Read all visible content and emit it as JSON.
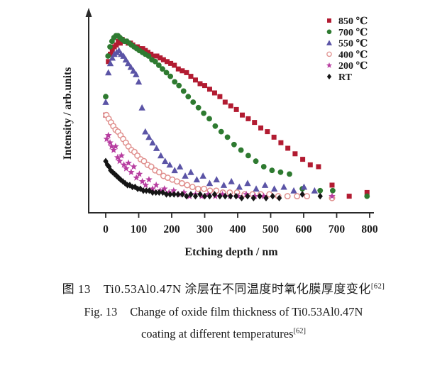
{
  "figure": {
    "caption_cn": {
      "label": "图 13",
      "text": "Ti0.53Al0.47N 涂层在不同温度时氧化膜厚度变化",
      "ref": "[62]"
    },
    "caption_en": {
      "label": "Fig. 13",
      "line1": "Change of oxide film thickness of Ti0.53Al0.47N",
      "line2": "coating at different temperatures",
      "ref": "[62]"
    }
  },
  "chart_data": {
    "type": "scatter",
    "title": "",
    "xlabel": "Etching depth / nm",
    "ylabel": "Intensity / arb.units",
    "x_ticks": [
      0,
      100,
      200,
      300,
      400,
      500,
      600,
      700,
      800
    ],
    "xlim": [
      -52,
      812
    ],
    "ylim": [
      0,
      110
    ],
    "grid": false,
    "legend_position": "top-right",
    "axis_color": "#2a2a2a",
    "series": [
      {
        "name": "850 ℃",
        "marker": "square",
        "color": "#b21b31",
        "points": [
          [
            0,
            53
          ],
          [
            8,
            82
          ],
          [
            14,
            86
          ],
          [
            20,
            88
          ],
          [
            26,
            90
          ],
          [
            32,
            91
          ],
          [
            38,
            93
          ],
          [
            44,
            92
          ],
          [
            50,
            94
          ],
          [
            56,
            93
          ],
          [
            62,
            93
          ],
          [
            68,
            92
          ],
          [
            75,
            92
          ],
          [
            82,
            91
          ],
          [
            89,
            90
          ],
          [
            96,
            90
          ],
          [
            104,
            89
          ],
          [
            112,
            89
          ],
          [
            120,
            88
          ],
          [
            128,
            87
          ],
          [
            137,
            86
          ],
          [
            146,
            85
          ],
          [
            155,
            85
          ],
          [
            165,
            84
          ],
          [
            175,
            83
          ],
          [
            186,
            82
          ],
          [
            197,
            81
          ],
          [
            208,
            80
          ],
          [
            220,
            78
          ],
          [
            232,
            77
          ],
          [
            245,
            76
          ],
          [
            258,
            74
          ],
          [
            272,
            72
          ],
          [
            286,
            70
          ],
          [
            300,
            69
          ],
          [
            315,
            67
          ],
          [
            330,
            65
          ],
          [
            346,
            63
          ],
          [
            362,
            60
          ],
          [
            379,
            58
          ],
          [
            396,
            56
          ],
          [
            414,
            53
          ],
          [
            432,
            51
          ],
          [
            451,
            49
          ],
          [
            470,
            46
          ],
          [
            490,
            44
          ],
          [
            510,
            41
          ],
          [
            531,
            38
          ],
          [
            552,
            35
          ],
          [
            574,
            32
          ],
          [
            597,
            29
          ],
          [
            620,
            26
          ],
          [
            645,
            25
          ],
          [
            686,
            15
          ],
          [
            738,
            9
          ],
          [
            792,
            11
          ]
        ]
      },
      {
        "name": "700 ℃",
        "marker": "circle",
        "color": "#2e7a30",
        "points": [
          [
            0,
            63
          ],
          [
            7,
            85
          ],
          [
            13,
            90
          ],
          [
            19,
            93
          ],
          [
            25,
            95
          ],
          [
            31,
            96
          ],
          [
            37,
            96
          ],
          [
            43,
            95
          ],
          [
            50,
            94
          ],
          [
            57,
            93
          ],
          [
            64,
            93
          ],
          [
            71,
            92
          ],
          [
            78,
            91
          ],
          [
            86,
            90
          ],
          [
            94,
            89
          ],
          [
            102,
            88
          ],
          [
            111,
            87
          ],
          [
            120,
            86
          ],
          [
            130,
            85
          ],
          [
            140,
            83
          ],
          [
            150,
            82
          ],
          [
            161,
            80
          ],
          [
            172,
            78
          ],
          [
            184,
            76
          ],
          [
            196,
            74
          ],
          [
            209,
            71
          ],
          [
            222,
            69
          ],
          [
            236,
            66
          ],
          [
            250,
            63
          ],
          [
            265,
            60
          ],
          [
            281,
            57
          ],
          [
            297,
            54
          ],
          [
            314,
            51
          ],
          [
            332,
            47
          ],
          [
            350,
            44
          ],
          [
            369,
            41
          ],
          [
            389,
            37
          ],
          [
            410,
            34
          ],
          [
            432,
            31
          ],
          [
            455,
            28
          ],
          [
            479,
            25
          ],
          [
            504,
            23
          ],
          [
            530,
            22
          ],
          [
            557,
            21
          ],
          [
            596,
            13
          ],
          [
            650,
            12
          ],
          [
            688,
            12
          ],
          [
            792,
            9
          ]
        ]
      },
      {
        "name": "550 ℃",
        "marker": "triangle",
        "color": "#5b54a6",
        "points": [
          [
            0,
            60
          ],
          [
            8,
            76
          ],
          [
            14,
            81
          ],
          [
            20,
            84
          ],
          [
            26,
            86
          ],
          [
            33,
            87
          ],
          [
            40,
            88
          ],
          [
            47,
            86
          ],
          [
            54,
            85
          ],
          [
            61,
            83
          ],
          [
            68,
            81
          ],
          [
            76,
            79
          ],
          [
            84,
            77
          ],
          [
            92,
            75
          ],
          [
            100,
            71
          ],
          [
            110,
            57
          ],
          [
            120,
            44
          ],
          [
            131,
            41
          ],
          [
            142,
            38
          ],
          [
            154,
            35
          ],
          [
            167,
            31
          ],
          [
            180,
            28
          ],
          [
            194,
            26
          ],
          [
            209,
            23
          ],
          [
            225,
            25
          ],
          [
            241,
            20
          ],
          [
            258,
            22
          ],
          [
            276,
            18
          ],
          [
            295,
            20
          ],
          [
            315,
            16
          ],
          [
            336,
            18
          ],
          [
            358,
            15
          ],
          [
            381,
            17
          ],
          [
            405,
            14
          ],
          [
            430,
            16
          ],
          [
            456,
            13
          ],
          [
            483,
            15
          ],
          [
            511,
            13
          ],
          [
            540,
            14
          ],
          [
            570,
            12
          ],
          [
            601,
            14
          ],
          [
            633,
            12
          ]
        ]
      },
      {
        "name": "400 ℃",
        "marker": "circle-open",
        "color": "#e0908e",
        "points": [
          [
            2,
            53
          ],
          [
            9,
            51
          ],
          [
            16,
            49
          ],
          [
            23,
            47
          ],
          [
            30,
            45
          ],
          [
            37,
            44
          ],
          [
            45,
            42
          ],
          [
            53,
            40
          ],
          [
            61,
            38
          ],
          [
            69,
            36
          ],
          [
            78,
            34
          ],
          [
            87,
            33
          ],
          [
            96,
            31
          ],
          [
            106,
            29
          ],
          [
            116,
            28
          ],
          [
            127,
            26
          ],
          [
            138,
            25
          ],
          [
            150,
            23
          ],
          [
            162,
            22
          ],
          [
            175,
            20
          ],
          [
            188,
            19
          ],
          [
            202,
            18
          ],
          [
            216,
            17
          ],
          [
            231,
            16
          ],
          [
            247,
            15
          ],
          [
            263,
            14
          ],
          [
            280,
            13
          ],
          [
            298,
            13
          ],
          [
            316,
            12
          ],
          [
            335,
            12
          ],
          [
            355,
            11
          ],
          [
            376,
            11
          ],
          [
            398,
            11
          ],
          [
            421,
            10
          ],
          [
            445,
            10
          ],
          [
            470,
            10
          ],
          [
            496,
            10
          ],
          [
            523,
            9
          ],
          [
            551,
            9
          ],
          [
            580,
            9
          ],
          [
            610,
            9
          ],
          [
            686,
            8
          ]
        ]
      },
      {
        "name": "200 ℃",
        "marker": "star",
        "color": "#b73da0",
        "points": [
          [
            3,
            40
          ],
          [
            8,
            42
          ],
          [
            13,
            38
          ],
          [
            18,
            36
          ],
          [
            24,
            34
          ],
          [
            30,
            36
          ],
          [
            36,
            30
          ],
          [
            42,
            28
          ],
          [
            48,
            31
          ],
          [
            55,
            26
          ],
          [
            62,
            24
          ],
          [
            69,
            27
          ],
          [
            77,
            22
          ],
          [
            85,
            25
          ],
          [
            93,
            19
          ],
          [
            102,
            21
          ],
          [
            111,
            17
          ],
          [
            121,
            15
          ],
          [
            131,
            18
          ],
          [
            142,
            13
          ],
          [
            153,
            15
          ],
          [
            165,
            12
          ],
          [
            178,
            13
          ],
          [
            192,
            11
          ],
          [
            206,
            12
          ],
          [
            221,
            10
          ],
          [
            237,
            11
          ],
          [
            254,
            9
          ],
          [
            272,
            10
          ],
          [
            291,
            9
          ],
          [
            311,
            10
          ],
          [
            332,
            9
          ],
          [
            354,
            10
          ],
          [
            377,
            9
          ],
          [
            401,
            9
          ],
          [
            426,
            10
          ],
          [
            452,
            9
          ],
          [
            479,
            9
          ],
          [
            686,
            9
          ]
        ]
      },
      {
        "name": "RT",
        "marker": "diamond",
        "color": "#151515",
        "points": [
          [
            0,
            28
          ],
          [
            5,
            26
          ],
          [
            10,
            25
          ],
          [
            15,
            23
          ],
          [
            21,
            22
          ],
          [
            27,
            21
          ],
          [
            33,
            20
          ],
          [
            39,
            19
          ],
          [
            45,
            18
          ],
          [
            52,
            17
          ],
          [
            59,
            16
          ],
          [
            66,
            15
          ],
          [
            73,
            15
          ],
          [
            81,
            14
          ],
          [
            89,
            14
          ],
          [
            97,
            13
          ],
          [
            105,
            13
          ],
          [
            114,
            12
          ],
          [
            123,
            12
          ],
          [
            132,
            12
          ],
          [
            142,
            11
          ],
          [
            152,
            11
          ],
          [
            162,
            11
          ],
          [
            173,
            11
          ],
          [
            184,
            10
          ],
          [
            195,
            10
          ],
          [
            207,
            10
          ],
          [
            219,
            10
          ],
          [
            232,
            10
          ],
          [
            245,
            9
          ],
          [
            258,
            10
          ],
          [
            272,
            9
          ],
          [
            286,
            10
          ],
          [
            300,
            9
          ],
          [
            315,
            9
          ],
          [
            330,
            10
          ],
          [
            346,
            9
          ],
          [
            362,
            9
          ],
          [
            378,
            9
          ],
          [
            395,
            9
          ],
          [
            412,
            8
          ],
          [
            430,
            9
          ],
          [
            448,
            8
          ],
          [
            467,
            9
          ],
          [
            486,
            8
          ],
          [
            506,
            9
          ],
          [
            526,
            8
          ],
          [
            596,
            10
          ],
          [
            650,
            9
          ]
        ]
      }
    ]
  }
}
